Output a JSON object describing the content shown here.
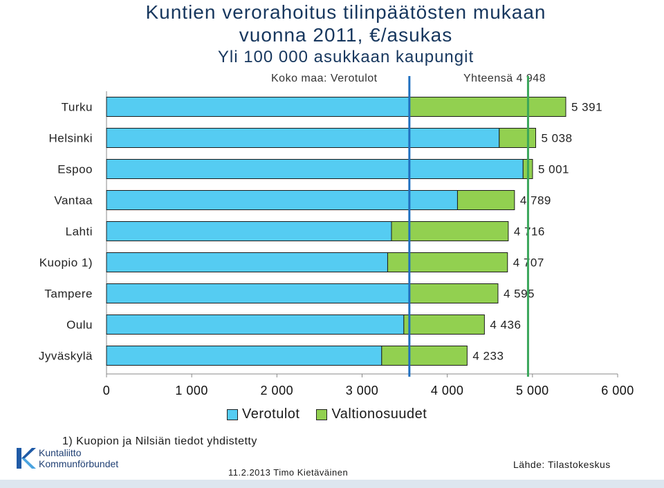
{
  "title": {
    "line1": "Kuntien verorahoitus tilinpäätösten mukaan",
    "line2": "vuonna 2011, €/asukas",
    "line3": "Yli 100 000 asukkaan kaupungit"
  },
  "reference": {
    "left_label": "Koko maa: Verotulot",
    "right_label": "Yhteensä  4 948"
  },
  "chart_data": {
    "type": "bar",
    "orientation": "horizontal",
    "stacked": true,
    "categories": [
      "Turku",
      "Helsinki",
      "Espoo",
      "Vantaa",
      "Lahti",
      "Kuopio 1)",
      "Tampere",
      "Oulu",
      "Jyväskylä"
    ],
    "series": [
      {
        "name": "Verotulot",
        "color": "#55ccf2",
        "values": [
          3555,
          4610,
          4890,
          4120,
          3345,
          3300,
          3550,
          3490,
          3230
        ]
      },
      {
        "name": "Valtionosuudet",
        "color": "#92d050",
        "values": [
          1836,
          428,
          111,
          669,
          1371,
          1407,
          1045,
          946,
          1003
        ]
      }
    ],
    "total_labels": [
      "5 391",
      "5 038",
      "5 001",
      "4 789",
      "4 716",
      "4 707",
      "4 595",
      "4 436",
      "4 233"
    ],
    "xlim": [
      0,
      6000
    ],
    "xticks": [
      0,
      1000,
      2000,
      3000,
      4000,
      5000,
      6000
    ],
    "xtick_labels": [
      "0",
      "1 000",
      "2 000",
      "3 000",
      "4 000",
      "5 000",
      "6 000"
    ],
    "reference_lines": [
      {
        "value": 3555,
        "color": "#1f6fbf"
      },
      {
        "value": 4948,
        "color": "#3aa65a"
      }
    ],
    "legend_position": "bottom"
  },
  "footnote": "1) Kuopion ja Nilsiän tiedot yhdistetty",
  "logo": {
    "line1": "Kuntaliitto",
    "line2": "Kommunförbundet"
  },
  "date_author": "11.2.2013 Timo Kietäväinen",
  "source": "Lähde: Tilastokeskus"
}
